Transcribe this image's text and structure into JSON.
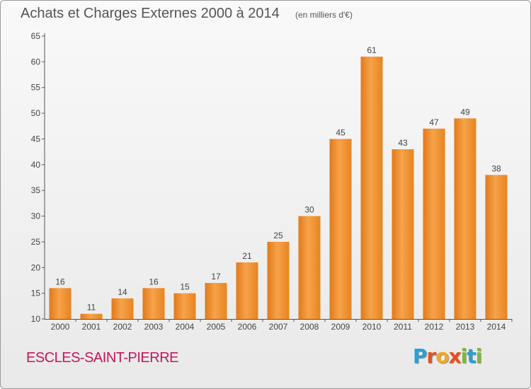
{
  "chart_data": {
    "type": "bar",
    "title": "Achats et Charges Externes 2000 à 2014",
    "subtitle": "(en milliers d'€)",
    "categories": [
      "2000",
      "2001",
      "2002",
      "2003",
      "2004",
      "2005",
      "2006",
      "2007",
      "2008",
      "2009",
      "2010",
      "2011",
      "2012",
      "2013",
      "2014"
    ],
    "values": [
      16,
      11,
      14,
      16,
      15,
      17,
      21,
      25,
      30,
      45,
      61,
      43,
      47,
      49,
      38
    ],
    "ylim": [
      10,
      65
    ],
    "yticks": [
      10,
      15,
      20,
      25,
      30,
      35,
      40,
      45,
      50,
      55,
      60,
      65
    ],
    "grid": false,
    "bar_color": "#f5962a"
  },
  "footer": {
    "commune": "ESCLES-SAINT-PIERRE",
    "logo_letters": [
      {
        "ch": "P",
        "color": "#2a9fd6"
      },
      {
        "ch": "r",
        "color": "#e8501e"
      },
      {
        "ch": "o",
        "color": "#f2a81d"
      },
      {
        "ch": "x",
        "color": "#e8501e"
      },
      {
        "ch": "i",
        "color": "#7cb93a"
      },
      {
        "ch": "t",
        "color": "#2a9fd6"
      },
      {
        "ch": "i",
        "color": "#7cb93a"
      }
    ]
  }
}
